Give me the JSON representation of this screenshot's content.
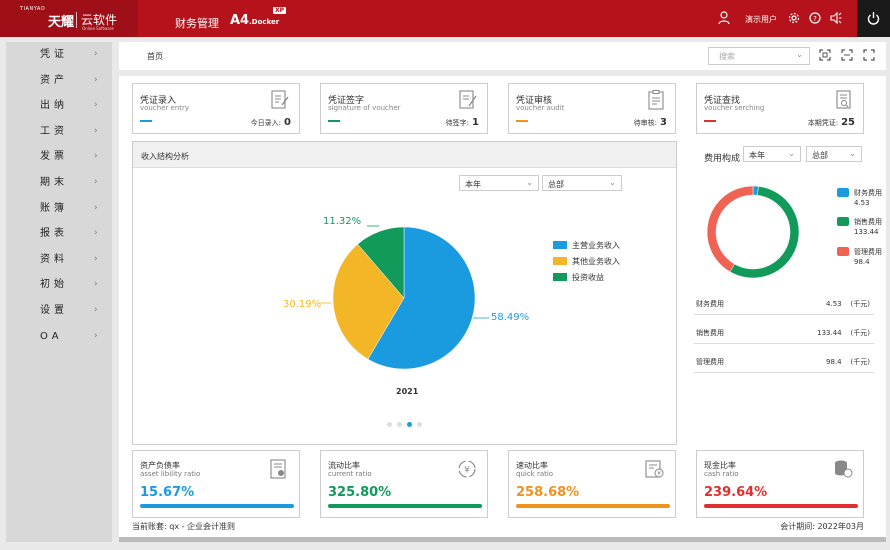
{
  "topbar": {
    "logo_sub": "TIANYAO",
    "logo_main": "天耀",
    "logo_yun": "云软件",
    "logo_yun_en": "Online Software",
    "nav_finance": "财务管理",
    "nav_a4": "A4",
    "nav_docker": ".Docker",
    "xp": "XP",
    "user": "演示用户",
    "icons": [
      "user-icon",
      "settings-icon",
      "help-icon",
      "volume-icon",
      "power-icon"
    ]
  },
  "sidebar": {
    "items": [
      {
        "label": "凭证"
      },
      {
        "label": "资产"
      },
      {
        "label": "出纳"
      },
      {
        "label": "工资"
      },
      {
        "label": "发票"
      },
      {
        "label": "期末"
      },
      {
        "label": "账簿"
      },
      {
        "label": "报表"
      },
      {
        "label": "资料"
      },
      {
        "label": "初始"
      },
      {
        "label": "设置"
      },
      {
        "label": "OA"
      }
    ]
  },
  "breadcrumb": {
    "home": "首页",
    "search_placeholder": "搜索"
  },
  "vouchers": [
    {
      "title": "凭证录入",
      "subtitle": "voucher entry",
      "count_label": "今日录入:",
      "count": "0",
      "color": "#1a9be0",
      "icon": "edit-document-icon"
    },
    {
      "title": "凭证签字",
      "subtitle": "signature of voucher",
      "count_label": "待签字:",
      "count": "1",
      "color": "#119a5a",
      "icon": "sign-document-icon"
    },
    {
      "title": "凭证审核",
      "subtitle": "voucher audit",
      "count_label": "待审核:",
      "count": "3",
      "color": "#f0931e",
      "icon": "clipboard-check-icon"
    },
    {
      "title": "凭证查找",
      "subtitle": "voucher serching",
      "count_label": "本期凭证:",
      "count": "25",
      "color": "#e0302e",
      "icon": "search-document-icon"
    }
  ],
  "income": {
    "title": "收入结构分析",
    "period": "本年",
    "scope": "总部",
    "year": "2021",
    "chart_data": {
      "type": "pie",
      "categories": [
        "主营业务收入",
        "其他业务收入",
        "投资收益"
      ],
      "values": [
        58.49,
        30.19,
        11.32
      ],
      "labels": [
        "58.49%",
        "30.19%",
        "11.32%"
      ],
      "colors": [
        "#1a9be0",
        "#f3b626",
        "#119a5a"
      ],
      "legend": "right"
    }
  },
  "expense": {
    "title": "费用构成",
    "period": "本年",
    "scope": "总部",
    "chart_data": {
      "type": "pie",
      "donut": true,
      "categories": [
        "财务费用",
        "销售费用",
        "管理费用"
      ],
      "values": [
        4.53,
        133.44,
        98.4
      ],
      "colors": [
        "#1a9be0",
        "#119a5a",
        "#f06354"
      ],
      "legend": "right"
    },
    "rows": [
      {
        "name": "财务费用",
        "value": "4.53",
        "unit": "(千元)"
      },
      {
        "name": "销售费用",
        "value": "133.44",
        "unit": "(千元)"
      },
      {
        "name": "管理费用",
        "value": "98.4",
        "unit": "(千元)"
      }
    ]
  },
  "ratios": [
    {
      "title": "资产负债率",
      "subtitle": "asset libility ratio",
      "value": "15.67%",
      "color": "#1a9be0",
      "icon": "report-icon"
    },
    {
      "title": "流动比率",
      "subtitle": "current ratio",
      "value": "325.80%",
      "color": "#119a5a",
      "icon": "currency-cycle-icon"
    },
    {
      "title": "速动比率",
      "subtitle": "quick ratio",
      "value": "258.68%",
      "color": "#f0931e",
      "icon": "invoice-icon"
    },
    {
      "title": "现金比率",
      "subtitle": "cash ratio",
      "value": "239.64%",
      "color": "#e0302e",
      "icon": "coins-icon"
    }
  ],
  "footer": {
    "account": "当前账套: qx - 企业会计准则",
    "period": "会计期间: 2022年03月"
  }
}
